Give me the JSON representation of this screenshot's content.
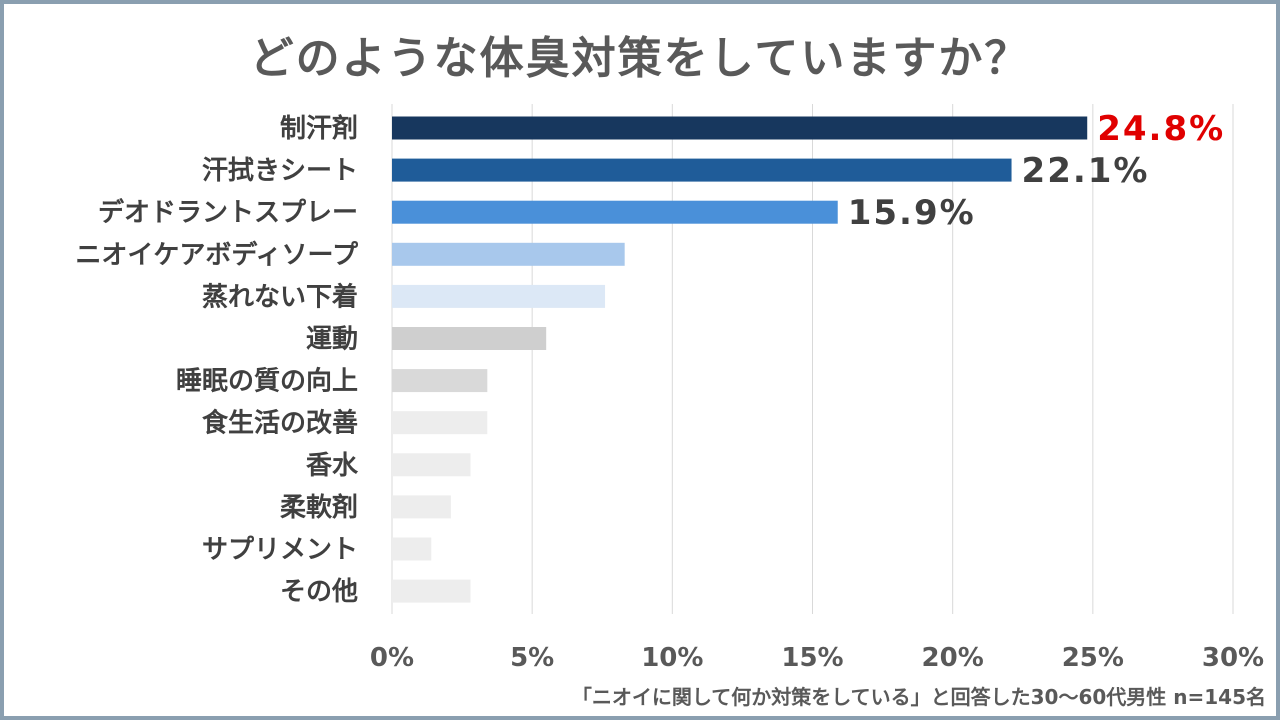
{
  "chart_data": {
    "type": "bar",
    "orientation": "horizontal",
    "title": "どのような体臭対策をしていますか？",
    "categories": [
      "制汗剤",
      "汗拭きシート",
      "デオドラントスプレー",
      "ニオイケアボディソープ",
      "蒸れない下着",
      "運動",
      "睡眠の質の向上",
      "食生活の改善",
      "香水",
      "柔軟剤",
      "サプリメント",
      "その他"
    ],
    "values": [
      24.8,
      22.1,
      15.9,
      8.3,
      7.6,
      5.5,
      3.4,
      3.4,
      2.8,
      2.1,
      1.4,
      2.8
    ],
    "colors": [
      "#17375e",
      "#1f5c99",
      "#4a90d9",
      "#a8c8ec",
      "#dce8f6",
      "#cfcfcf",
      "#d9d9d9",
      "#ededed",
      "#ededed",
      "#ededed",
      "#ededed",
      "#ededed"
    ],
    "data_labels": [
      {
        "index": 0,
        "text": "24.8%",
        "color": "#e00000"
      },
      {
        "index": 1,
        "text": "22.1%",
        "color": "#404040"
      },
      {
        "index": 2,
        "text": "15.9%",
        "color": "#404040"
      }
    ],
    "xlim": [
      0,
      30
    ],
    "xticks": [
      0,
      5,
      10,
      15,
      20,
      25,
      30
    ],
    "xtick_labels": [
      "0%",
      "5%",
      "10%",
      "15%",
      "20%",
      "25%",
      "30%"
    ],
    "grid": "vertical",
    "footnote": "「ニオイに関して何か対策をしている」と回答した30～60代男性 n=145名"
  }
}
